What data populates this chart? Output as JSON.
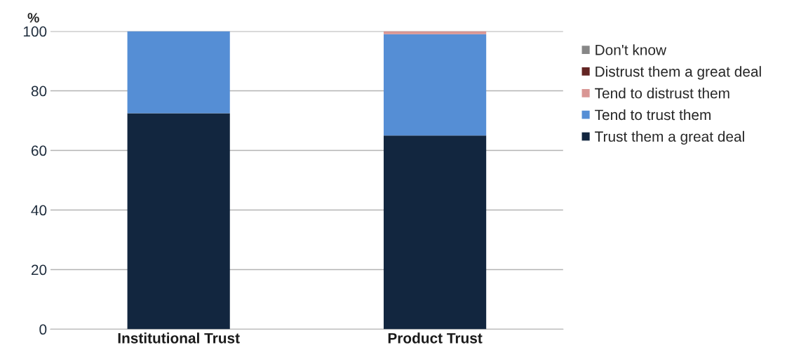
{
  "chart_data": {
    "type": "bar",
    "stacked": true,
    "ylabel": "%",
    "categories": [
      "Institutional Trust",
      "Product Trust"
    ],
    "series": [
      {
        "name": "Trust them a great deal",
        "color": "#12263f",
        "values": [
          72.5,
          65
        ]
      },
      {
        "name": "Tend to trust them",
        "color": "#558ed5",
        "values": [
          27.5,
          34
        ]
      },
      {
        "name": "Tend to distrust them",
        "color": "#d99694",
        "values": [
          null,
          1
        ]
      },
      {
        "name": "Distrust them a great deal",
        "color": "#632523",
        "values": [
          null,
          null
        ]
      },
      {
        "name": "Don't know",
        "color": "#878787",
        "values": [
          null,
          null
        ]
      }
    ],
    "ylim": [
      0,
      100
    ],
    "yticks": [
      0,
      20,
      40,
      60,
      80,
      100
    ],
    "grid": "y",
    "legend": "right"
  }
}
